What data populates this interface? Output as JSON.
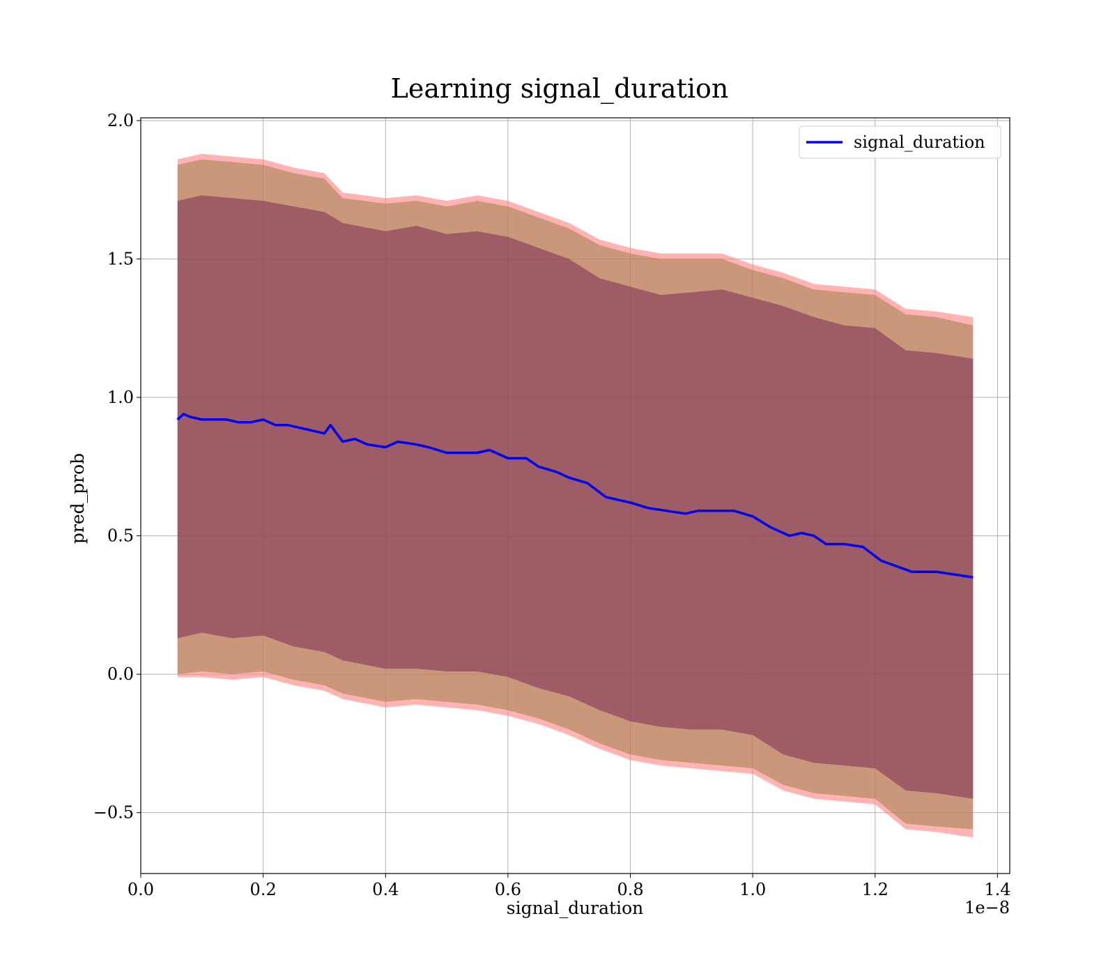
{
  "chart_data": {
    "type": "line",
    "title": "Learning signal_duration",
    "xlabel": "signal_duration",
    "ylabel": "pred_prob",
    "x_offset_label": "1e−8",
    "xlim": [
      0.0,
      1.42
    ],
    "ylim": [
      -0.72,
      2.01
    ],
    "x_ticks": [
      0.0,
      0.2,
      0.4,
      0.6,
      0.8,
      1.0,
      1.2,
      1.4
    ],
    "x_tick_labels": [
      "0.0",
      "0.2",
      "0.4",
      "0.6",
      "0.8",
      "1.0",
      "1.2",
      "1.4"
    ],
    "y_ticks": [
      -0.5,
      0.0,
      0.5,
      1.0,
      1.5,
      2.0
    ],
    "y_tick_labels": [
      "−0.5",
      "0.0",
      "0.5",
      "1.0",
      "1.5",
      "2.0"
    ],
    "grid": true,
    "legend_position": "top-right",
    "legend": [
      "signal_duration"
    ],
    "series": [
      {
        "name": "signal_duration",
        "color": "#0000ee",
        "x": [
          0.06,
          0.07,
          0.08,
          0.1,
          0.12,
          0.14,
          0.16,
          0.18,
          0.2,
          0.22,
          0.24,
          0.26,
          0.28,
          0.3,
          0.31,
          0.33,
          0.35,
          0.37,
          0.4,
          0.42,
          0.45,
          0.47,
          0.5,
          0.52,
          0.55,
          0.57,
          0.6,
          0.63,
          0.65,
          0.68,
          0.7,
          0.73,
          0.76,
          0.78,
          0.8,
          0.83,
          0.86,
          0.89,
          0.91,
          0.94,
          0.97,
          1.0,
          1.03,
          1.06,
          1.08,
          1.1,
          1.12,
          1.15,
          1.18,
          1.21,
          1.26,
          1.3,
          1.36
        ],
        "y": [
          0.92,
          0.94,
          0.93,
          0.92,
          0.92,
          0.92,
          0.91,
          0.91,
          0.92,
          0.9,
          0.9,
          0.89,
          0.88,
          0.87,
          0.9,
          0.84,
          0.85,
          0.83,
          0.82,
          0.84,
          0.83,
          0.82,
          0.8,
          0.8,
          0.8,
          0.81,
          0.78,
          0.78,
          0.75,
          0.73,
          0.71,
          0.69,
          0.64,
          0.63,
          0.62,
          0.6,
          0.59,
          0.58,
          0.59,
          0.59,
          0.59,
          0.57,
          0.53,
          0.5,
          0.51,
          0.5,
          0.47,
          0.47,
          0.46,
          0.41,
          0.37,
          0.37,
          0.35
        ]
      }
    ],
    "bands": [
      {
        "role": "outer-band",
        "color": "#ff8080",
        "opacity": 0.6,
        "x": [
          0.06,
          0.1,
          0.15,
          0.2,
          0.25,
          0.3,
          0.33,
          0.4,
          0.45,
          0.5,
          0.55,
          0.6,
          0.65,
          0.7,
          0.75,
          0.8,
          0.85,
          0.9,
          0.95,
          1.0,
          1.05,
          1.1,
          1.15,
          1.2,
          1.25,
          1.3,
          1.36
        ],
        "upper": [
          1.86,
          1.88,
          1.87,
          1.86,
          1.83,
          1.81,
          1.74,
          1.72,
          1.73,
          1.71,
          1.73,
          1.71,
          1.67,
          1.63,
          1.57,
          1.54,
          1.52,
          1.52,
          1.52,
          1.48,
          1.45,
          1.41,
          1.4,
          1.39,
          1.32,
          1.31,
          1.29
        ],
        "lower": [
          -0.01,
          -0.01,
          -0.02,
          -0.01,
          -0.04,
          -0.06,
          -0.09,
          -0.12,
          -0.11,
          -0.12,
          -0.13,
          -0.15,
          -0.18,
          -0.22,
          -0.27,
          -0.31,
          -0.33,
          -0.34,
          -0.35,
          -0.36,
          -0.42,
          -0.45,
          -0.46,
          -0.47,
          -0.56,
          -0.57,
          -0.59
        ]
      },
      {
        "role": "middle-band",
        "color": "#a0804d",
        "opacity": 0.55,
        "x": [
          0.06,
          0.1,
          0.15,
          0.2,
          0.25,
          0.3,
          0.33,
          0.4,
          0.45,
          0.5,
          0.55,
          0.6,
          0.65,
          0.7,
          0.75,
          0.8,
          0.85,
          0.9,
          0.95,
          1.0,
          1.05,
          1.1,
          1.15,
          1.2,
          1.25,
          1.3,
          1.36
        ],
        "upper": [
          1.84,
          1.86,
          1.85,
          1.84,
          1.81,
          1.79,
          1.72,
          1.7,
          1.71,
          1.69,
          1.71,
          1.69,
          1.65,
          1.61,
          1.55,
          1.52,
          1.5,
          1.5,
          1.5,
          1.46,
          1.43,
          1.39,
          1.38,
          1.37,
          1.3,
          1.29,
          1.26
        ],
        "lower": [
          0.0,
          0.01,
          0.0,
          0.01,
          -0.02,
          -0.04,
          -0.07,
          -0.1,
          -0.09,
          -0.1,
          -0.11,
          -0.13,
          -0.16,
          -0.2,
          -0.25,
          -0.29,
          -0.31,
          -0.32,
          -0.33,
          -0.34,
          -0.4,
          -0.43,
          -0.44,
          -0.45,
          -0.54,
          -0.55,
          -0.56
        ]
      },
      {
        "role": "inner-band",
        "color": "#7a2b55",
        "opacity": 0.55,
        "x": [
          0.06,
          0.1,
          0.15,
          0.2,
          0.25,
          0.3,
          0.33,
          0.4,
          0.45,
          0.5,
          0.55,
          0.6,
          0.65,
          0.7,
          0.75,
          0.8,
          0.85,
          0.9,
          0.95,
          1.0,
          1.05,
          1.1,
          1.15,
          1.2,
          1.25,
          1.3,
          1.36
        ],
        "upper": [
          1.71,
          1.73,
          1.72,
          1.71,
          1.69,
          1.67,
          1.63,
          1.6,
          1.62,
          1.59,
          1.6,
          1.58,
          1.54,
          1.5,
          1.43,
          1.4,
          1.37,
          1.38,
          1.39,
          1.36,
          1.33,
          1.29,
          1.26,
          1.25,
          1.17,
          1.16,
          1.14
        ],
        "lower": [
          0.13,
          0.15,
          0.13,
          0.14,
          0.1,
          0.08,
          0.05,
          0.02,
          0.02,
          0.01,
          0.01,
          -0.01,
          -0.05,
          -0.08,
          -0.13,
          -0.17,
          -0.19,
          -0.2,
          -0.2,
          -0.22,
          -0.29,
          -0.32,
          -0.33,
          -0.34,
          -0.42,
          -0.43,
          -0.45
        ]
      }
    ]
  }
}
